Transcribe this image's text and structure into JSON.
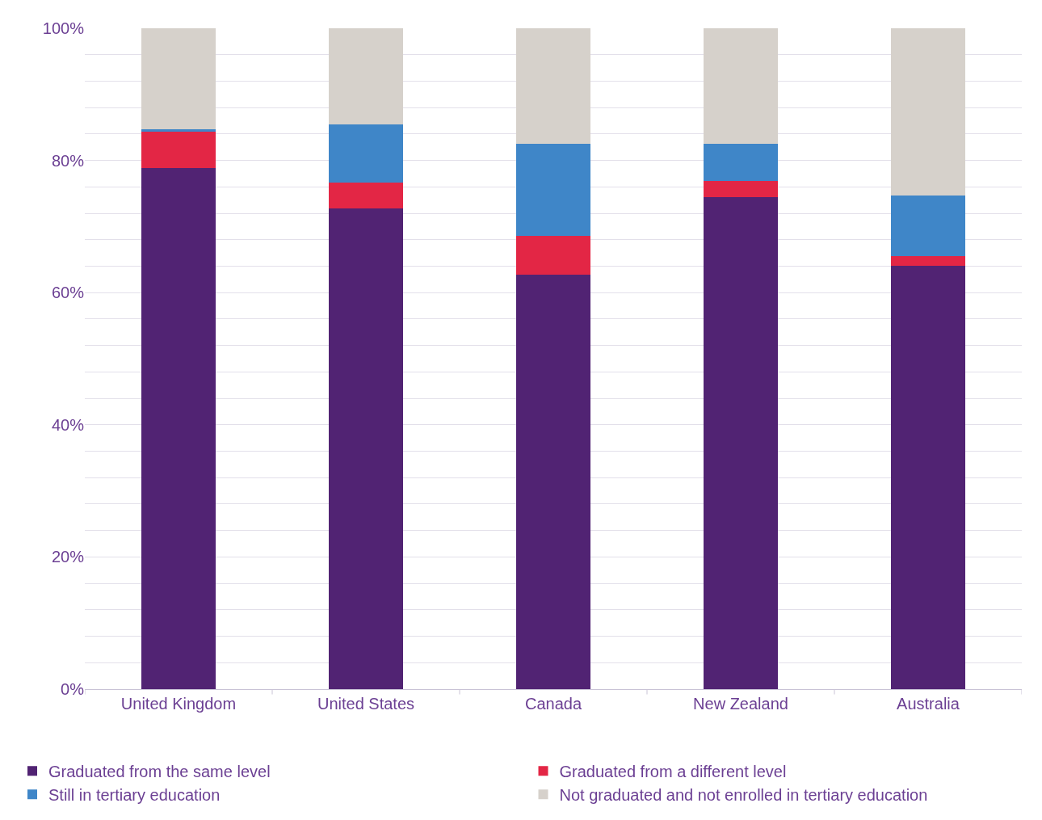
{
  "chart_data": {
    "type": "bar",
    "stacked": true,
    "categories": [
      "United Kingdom",
      "United States",
      "Canada",
      "New Zealand",
      "Australia"
    ],
    "series": [
      {
        "name": "Graduated from the same level",
        "color": "#512373",
        "values": [
          78.9,
          72.7,
          62.7,
          74.5,
          64.1
        ]
      },
      {
        "name": "Graduated from a different level",
        "color": "#e32645",
        "values": [
          5.5,
          3.9,
          5.9,
          2.4,
          1.4
        ]
      },
      {
        "name": "Still in tertiary education",
        "color": "#3f86c8",
        "values": [
          0.3,
          8.8,
          13.9,
          5.6,
          9.2
        ]
      },
      {
        "name": "Not graduated and not enrolled in tertiary education",
        "color": "#d6d1cb",
        "values": [
          15.3,
          14.6,
          17.5,
          17.5,
          25.3
        ]
      }
    ],
    "ylim": [
      0,
      100
    ],
    "yticks": [
      {
        "value": 0,
        "label": "0%"
      },
      {
        "value": 4,
        "label": null
      },
      {
        "value": 8,
        "label": null
      },
      {
        "value": 12,
        "label": null
      },
      {
        "value": 16,
        "label": null
      },
      {
        "value": 20,
        "label": "20%"
      },
      {
        "value": 24,
        "label": null
      },
      {
        "value": 28,
        "label": null
      },
      {
        "value": 32,
        "label": null
      },
      {
        "value": 36,
        "label": null
      },
      {
        "value": 40,
        "label": "40%"
      },
      {
        "value": 44,
        "label": null
      },
      {
        "value": 48,
        "label": null
      },
      {
        "value": 52,
        "label": null
      },
      {
        "value": 56,
        "label": null
      },
      {
        "value": 60,
        "label": "60%"
      },
      {
        "value": 64,
        "label": null
      },
      {
        "value": 68,
        "label": null
      },
      {
        "value": 72,
        "label": null
      },
      {
        "value": 76,
        "label": null
      },
      {
        "value": 80,
        "label": "80%"
      },
      {
        "value": 84,
        "label": null
      },
      {
        "value": 88,
        "label": null
      },
      {
        "value": 92,
        "label": null
      },
      {
        "value": 96,
        "label": null
      },
      {
        "value": 100,
        "label": "100%"
      }
    ],
    "grid": "y",
    "legend": "bottom"
  }
}
